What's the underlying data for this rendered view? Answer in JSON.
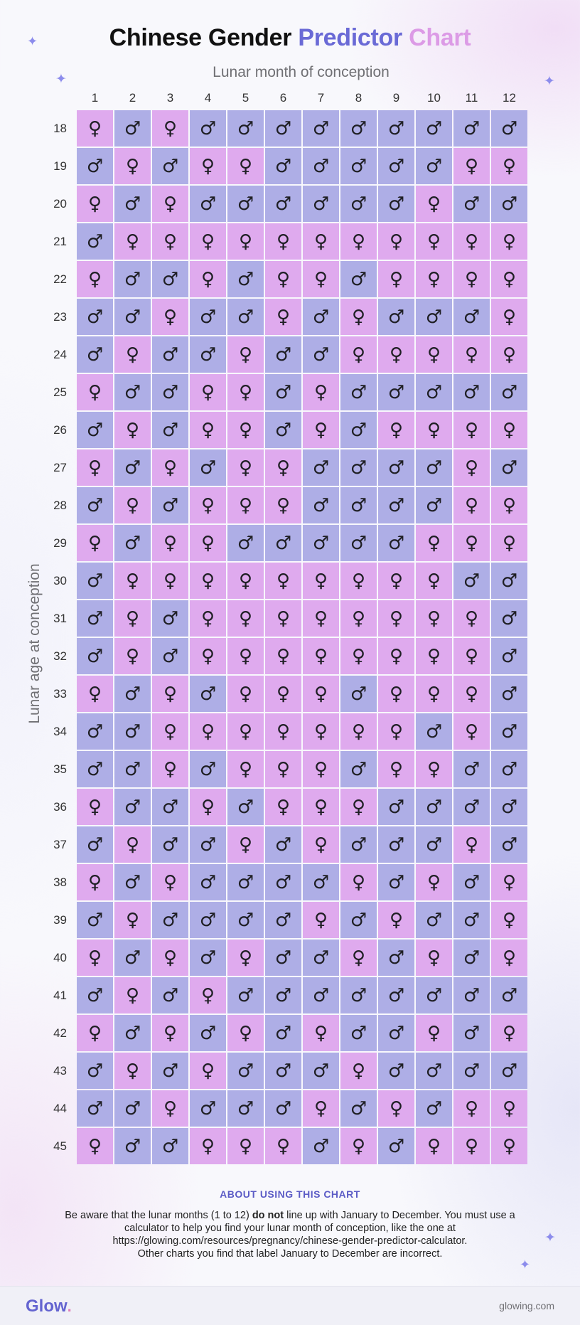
{
  "title": {
    "part1": "Chinese Gender",
    "part2": "Predictor",
    "part3": "Chart"
  },
  "colors": {
    "girl": "#dfaaee",
    "boy": "#aeaee6",
    "title_accent_1": "#6a6ad6",
    "title_accent_2": "#dc9be6"
  },
  "chart_data": {
    "type": "table",
    "xlabel": "Lunar month of conception",
    "ylabel": "Lunar age at conception",
    "months": [
      "1",
      "2",
      "3",
      "4",
      "5",
      "6",
      "7",
      "8",
      "9",
      "10",
      "11",
      "12"
    ],
    "ages": [
      "18",
      "19",
      "20",
      "21",
      "22",
      "23",
      "24",
      "25",
      "26",
      "27",
      "28",
      "29",
      "30",
      "31",
      "32",
      "33",
      "34",
      "35",
      "36",
      "37",
      "38",
      "39",
      "40",
      "41",
      "42",
      "43",
      "44",
      "45"
    ],
    "symbols": {
      "F": "♀",
      "M": "♂"
    },
    "rows": [
      [
        "F",
        "M",
        "F",
        "M",
        "M",
        "M",
        "M",
        "M",
        "M",
        "M",
        "M",
        "M"
      ],
      [
        "M",
        "F",
        "M",
        "F",
        "F",
        "M",
        "M",
        "M",
        "M",
        "M",
        "F",
        "F"
      ],
      [
        "F",
        "M",
        "F",
        "M",
        "M",
        "M",
        "M",
        "M",
        "M",
        "F",
        "M",
        "M"
      ],
      [
        "M",
        "F",
        "F",
        "F",
        "F",
        "F",
        "F",
        "F",
        "F",
        "F",
        "F",
        "F"
      ],
      [
        "F",
        "M",
        "M",
        "F",
        "M",
        "F",
        "F",
        "M",
        "F",
        "F",
        "F",
        "F"
      ],
      [
        "M",
        "M",
        "F",
        "M",
        "M",
        "F",
        "M",
        "F",
        "M",
        "M",
        "M",
        "F"
      ],
      [
        "M",
        "F",
        "M",
        "M",
        "F",
        "M",
        "M",
        "F",
        "F",
        "F",
        "F",
        "F"
      ],
      [
        "F",
        "M",
        "M",
        "F",
        "F",
        "M",
        "F",
        "M",
        "M",
        "M",
        "M",
        "M"
      ],
      [
        "M",
        "F",
        "M",
        "F",
        "F",
        "M",
        "F",
        "M",
        "F",
        "F",
        "F",
        "F"
      ],
      [
        "F",
        "M",
        "F",
        "M",
        "F",
        "F",
        "M",
        "M",
        "M",
        "M",
        "F",
        "M"
      ],
      [
        "M",
        "F",
        "M",
        "F",
        "F",
        "F",
        "M",
        "M",
        "M",
        "M",
        "F",
        "F"
      ],
      [
        "F",
        "M",
        "F",
        "F",
        "M",
        "M",
        "M",
        "M",
        "M",
        "F",
        "F",
        "F"
      ],
      [
        "M",
        "F",
        "F",
        "F",
        "F",
        "F",
        "F",
        "F",
        "F",
        "F",
        "M",
        "M"
      ],
      [
        "M",
        "F",
        "M",
        "F",
        "F",
        "F",
        "F",
        "F",
        "F",
        "F",
        "F",
        "M"
      ],
      [
        "M",
        "F",
        "M",
        "F",
        "F",
        "F",
        "F",
        "F",
        "F",
        "F",
        "F",
        "M"
      ],
      [
        "F",
        "M",
        "F",
        "M",
        "F",
        "F",
        "F",
        "M",
        "F",
        "F",
        "F",
        "M"
      ],
      [
        "M",
        "M",
        "F",
        "F",
        "F",
        "F",
        "F",
        "F",
        "F",
        "M",
        "F",
        "M"
      ],
      [
        "M",
        "M",
        "F",
        "M",
        "F",
        "F",
        "F",
        "M",
        "F",
        "F",
        "M",
        "M"
      ],
      [
        "F",
        "M",
        "M",
        "F",
        "M",
        "F",
        "F",
        "F",
        "M",
        "M",
        "M",
        "M"
      ],
      [
        "M",
        "F",
        "M",
        "M",
        "F",
        "M",
        "F",
        "M",
        "M",
        "M",
        "F",
        "M"
      ],
      [
        "F",
        "M",
        "F",
        "M",
        "M",
        "M",
        "M",
        "F",
        "M",
        "F",
        "M",
        "F"
      ],
      [
        "M",
        "F",
        "M",
        "M",
        "M",
        "M",
        "F",
        "M",
        "F",
        "M",
        "M",
        "F"
      ],
      [
        "F",
        "M",
        "F",
        "M",
        "F",
        "M",
        "M",
        "F",
        "M",
        "F",
        "M",
        "F"
      ],
      [
        "M",
        "F",
        "M",
        "F",
        "M",
        "M",
        "M",
        "M",
        "M",
        "M",
        "M",
        "M"
      ],
      [
        "F",
        "M",
        "F",
        "M",
        "F",
        "M",
        "F",
        "M",
        "M",
        "F",
        "M",
        "F"
      ],
      [
        "M",
        "F",
        "M",
        "F",
        "M",
        "M",
        "M",
        "F",
        "M",
        "M",
        "M",
        "M"
      ],
      [
        "M",
        "M",
        "F",
        "M",
        "M",
        "M",
        "F",
        "M",
        "F",
        "M",
        "F",
        "F"
      ],
      [
        "F",
        "M",
        "M",
        "F",
        "F",
        "F",
        "M",
        "F",
        "M",
        "F",
        "F",
        "F"
      ]
    ]
  },
  "about": {
    "heading": "ABOUT USING THIS CHART",
    "line1_pre": "Be aware that the lunar months (1 to 12) ",
    "line1_bold": "do not",
    "line1_post": " line up with January to December. You must use a calculator to help you find your lunar month of conception, like the one at https://glowing.com/resources/pregnancy/chinese-gender-predictor-calculator.",
    "line2": "Other charts you find that label January to December are incorrect."
  },
  "footer": {
    "logo": "Glow",
    "logo_dot": ".",
    "site": "glowing.com"
  },
  "decorations": {
    "sparkle_icon": "✦"
  }
}
